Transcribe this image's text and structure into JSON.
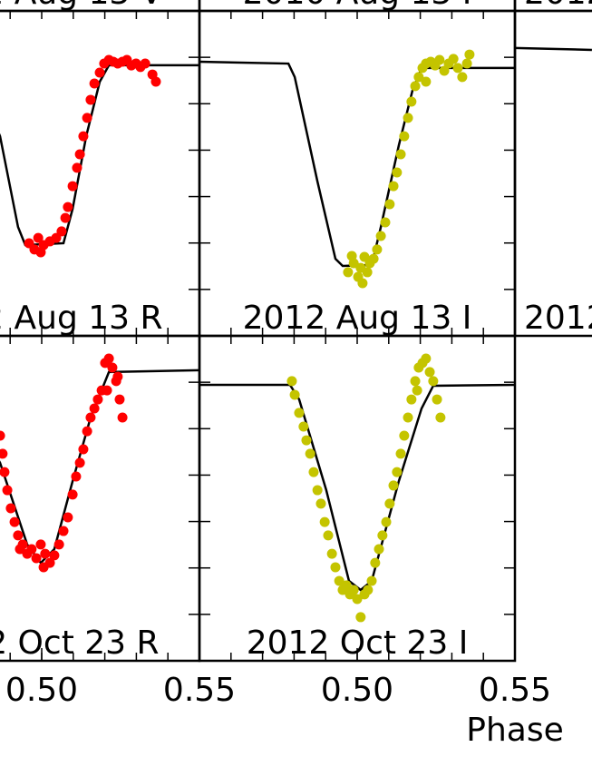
{
  "chart_data": [
    {
      "type": "scatter",
      "title": "2012 Aug 13 V"
    },
    {
      "type": "scatter",
      "title": "2010 Aug 13 I"
    },
    {
      "type": "scatter",
      "title": "2012 Aug 13 U"
    },
    {
      "type": "scatter",
      "title": "2012 Aug 13 R",
      "xlim": [
        0.45,
        0.55
      ],
      "ylim": [
        0,
        1.4
      ],
      "xminor": [
        0.46,
        0.47,
        0.48,
        0.49,
        0.5,
        0.51,
        0.52,
        0.53,
        0.54
      ],
      "yminor": [
        0.2,
        0.4,
        0.6,
        0.8,
        1,
        1.2
      ],
      "model": {
        "color": "#000000",
        "x": [
          0.45,
          0.4753,
          0.4782,
          0.4868,
          0.4925,
          0.4948,
          0.5069,
          0.5098,
          0.5141,
          0.5184,
          0.5213,
          0.55
        ],
        "values": [
          1.181,
          1.173,
          1.134,
          0.86,
          0.469,
          0.391,
          0.399,
          0.547,
          0.86,
          1.095,
          1.166,
          1.166
        ]
      },
      "points": {
        "color": "#ff0000",
        "x": [
          0.496,
          0.4977,
          0.4989,
          0.4997,
          0.5006,
          0.5026,
          0.5046,
          0.5063,
          0.5075,
          0.5083,
          0.5098,
          0.5112,
          0.5121,
          0.5132,
          0.5144,
          0.5155,
          0.5167,
          0.5184,
          0.5198,
          0.5213,
          0.5227,
          0.5241,
          0.5256,
          0.527,
          0.5284,
          0.5299,
          0.5313,
          0.5328,
          0.5351,
          0.5362
        ],
        "values": [
          0.399,
          0.372,
          0.422,
          0.36,
          0.391,
          0.407,
          0.422,
          0.45,
          0.508,
          0.555,
          0.645,
          0.724,
          0.782,
          0.86,
          0.939,
          1.017,
          1.087,
          1.134,
          1.173,
          1.189,
          1.181,
          1.173,
          1.181,
          1.189,
          1.165,
          1.173,
          1.158,
          1.173,
          1.126,
          1.095
        ]
      }
    },
    {
      "type": "scatter",
      "title": "2012 Aug 13 I",
      "xlim": [
        0.45,
        0.55
      ],
      "ylim": [
        0,
        1.4
      ],
      "xminor": [
        0.46,
        0.47,
        0.48,
        0.49,
        0.5,
        0.51,
        0.52,
        0.53,
        0.54
      ],
      "yminor": [
        0.2,
        0.4,
        0.6,
        0.8,
        1,
        1.2
      ],
      "model": {
        "color": "#000000",
        "x": [
          0.45,
          0.4782,
          0.4802,
          0.4874,
          0.4931,
          0.4954,
          0.5046,
          0.5075,
          0.5132,
          0.5175,
          0.5204,
          0.55
        ],
        "values": [
          1.181,
          1.173,
          1.115,
          0.665,
          0.332,
          0.301,
          0.305,
          0.469,
          0.821,
          1.056,
          1.154,
          1.154
        ]
      },
      "points": {
        "color": "#c4c400",
        "x": [
          0.4971,
          0.4983,
          0.4989,
          0.5003,
          0.5011,
          0.5017,
          0.5023,
          0.5032,
          0.504,
          0.5052,
          0.5063,
          0.5075,
          0.5089,
          0.5103,
          0.5115,
          0.5126,
          0.5138,
          0.5149,
          0.5161,
          0.5172,
          0.5184,
          0.5195,
          0.5207,
          0.5218,
          0.5218,
          0.5233,
          0.5247,
          0.5261,
          0.5276,
          0.529,
          0.5305,
          0.5319,
          0.5333,
          0.5348,
          0.5356
        ],
        "values": [
          0.274,
          0.344,
          0.313,
          0.254,
          0.293,
          0.227,
          0.34,
          0.274,
          0.313,
          0.332,
          0.372,
          0.43,
          0.489,
          0.567,
          0.645,
          0.704,
          0.782,
          0.86,
          0.939,
          1.009,
          1.076,
          1.115,
          1.154,
          1.173,
          1.095,
          1.181,
          1.165,
          1.189,
          1.142,
          1.173,
          1.193,
          1.154,
          1.115,
          1.173,
          1.212
        ]
      }
    },
    {
      "type": "scatter",
      "title": "2012 Aug 13 B",
      "xlim": [
        0.45,
        0.55
      ],
      "ylim": [
        0,
        1.4
      ],
      "model": {
        "color": "#000000",
        "x": [
          0.45,
          0.4744
        ],
        "values": [
          1.24,
          1.232
        ]
      }
    },
    {
      "type": "scatter",
      "title": "2012 Oct 23 R",
      "xlim": [
        0.45,
        0.55
      ],
      "ylim": [
        0,
        1.4
      ],
      "xminor": [
        0.46,
        0.47,
        0.48,
        0.49,
        0.5,
        0.51,
        0.52,
        0.53,
        0.54
      ],
      "yminor": [
        0.2,
        0.4,
        0.6,
        0.8,
        1,
        1.2
      ],
      "xticks": [
        {
          "value": 0.5,
          "label": "0.50"
        },
        {
          "value": 0.55,
          "label": "0.55"
        }
      ],
      "model": {
        "color": "#000000",
        "x": [
          0.45,
          0.4695,
          0.4753,
          0.4868,
          0.4954,
          0.4997,
          0.504,
          0.5098,
          0.5155,
          0.5213,
          0.55
        ],
        "values": [
          1.189,
          1.189,
          1.126,
          0.853,
          0.501,
          0.422,
          0.481,
          0.774,
          1.048,
          1.244,
          1.252
        ]
      },
      "points": {
        "color": "#ff0000",
        "x": [
          0.4868,
          0.4876,
          0.4882,
          0.4891,
          0.4902,
          0.4914,
          0.4925,
          0.4931,
          0.494,
          0.4954,
          0.4968,
          0.4983,
          0.4997,
          0.5006,
          0.5011,
          0.5026,
          0.504,
          0.5055,
          0.5069,
          0.5083,
          0.5098,
          0.5109,
          0.5121,
          0.5132,
          0.5144,
          0.5155,
          0.5167,
          0.5178,
          0.519,
          0.5201,
          0.5207,
          0.5213,
          0.5224,
          0.5236,
          0.5241,
          0.5247,
          0.5256
        ],
        "values": [
          0.97,
          0.892,
          0.813,
          0.735,
          0.657,
          0.598,
          0.54,
          0.481,
          0.501,
          0.461,
          0.481,
          0.442,
          0.501,
          0.403,
          0.461,
          0.422,
          0.454,
          0.501,
          0.559,
          0.618,
          0.716,
          0.794,
          0.853,
          0.911,
          0.989,
          1.048,
          1.087,
          1.126,
          1.165,
          1.283,
          1.165,
          1.302,
          1.263,
          1.205,
          1.224,
          1.126,
          1.048
        ]
      }
    },
    {
      "type": "scatter",
      "title": "2012 Oct 23 I",
      "xlabel": "Phase",
      "xlim": [
        0.45,
        0.55
      ],
      "ylim": [
        0,
        1.4
      ],
      "xminor": [
        0.46,
        0.47,
        0.48,
        0.49,
        0.5,
        0.51,
        0.52,
        0.53,
        0.54
      ],
      "yminor": [
        0.2,
        0.4,
        0.6,
        0.8,
        1,
        1.2
      ],
      "xticks": [
        {
          "value": 0.5,
          "label": "0.50"
        },
        {
          "value": 0.55,
          "label": "0.55"
        }
      ],
      "model": {
        "color": "#000000",
        "x": [
          0.45,
          0.4787,
          0.4816,
          0.4902,
          0.4974,
          0.5011,
          0.5046,
          0.5132,
          0.5204,
          0.5241,
          0.55
        ],
        "values": [
          1.189,
          1.189,
          1.126,
          0.735,
          0.344,
          0.305,
          0.344,
          0.774,
          1.087,
          1.185,
          1.189
        ]
      },
      "points": {
        "color": "#c4c400",
        "x": [
          0.4793,
          0.4802,
          0.4816,
          0.483,
          0.4839,
          0.4851,
          0.4862,
          0.4874,
          0.4885,
          0.4897,
          0.4908,
          0.492,
          0.4931,
          0.4943,
          0.4954,
          0.4966,
          0.4977,
          0.4989,
          0.5,
          0.5011,
          0.5023,
          0.5034,
          0.5046,
          0.5057,
          0.5069,
          0.508,
          0.5092,
          0.5103,
          0.5115,
          0.5126,
          0.5138,
          0.5149,
          0.5161,
          0.5172,
          0.5184,
          0.519,
          0.5195,
          0.5207,
          0.5218,
          0.523,
          0.5241,
          0.5253,
          0.5264
        ],
        "values": [
          1.205,
          1.146,
          1.068,
          1.009,
          0.95,
          0.892,
          0.813,
          0.735,
          0.677,
          0.598,
          0.54,
          0.461,
          0.403,
          0.344,
          0.305,
          0.325,
          0.286,
          0.305,
          0.266,
          0.188,
          0.286,
          0.305,
          0.344,
          0.422,
          0.481,
          0.54,
          0.598,
          0.677,
          0.755,
          0.813,
          0.892,
          0.97,
          1.048,
          1.126,
          1.205,
          1.165,
          1.263,
          1.283,
          1.302,
          1.244,
          1.205,
          1.126,
          1.048
        ]
      }
    }
  ]
}
